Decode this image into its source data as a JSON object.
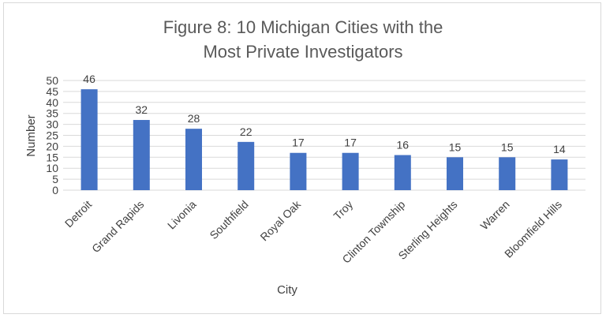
{
  "chart_data": {
    "type": "bar",
    "title_lines": [
      "Figure 8: 10 Michigan Cities with the",
      "Most Private Investigators"
    ],
    "xlabel": "City",
    "ylabel": "Number",
    "categories": [
      "Detroit",
      "Grand Rapids",
      "Livonia",
      "Southfield",
      "Royal Oak",
      "Troy",
      "Clinton Township",
      "Sterling Heights",
      "Warren",
      "Bloomfield Hills"
    ],
    "values": [
      46,
      32,
      28,
      22,
      17,
      17,
      16,
      15,
      15,
      14
    ],
    "ylim": [
      0,
      50
    ],
    "yticks": [
      0,
      5,
      10,
      15,
      20,
      25,
      30,
      35,
      40,
      45,
      50
    ],
    "grid": true,
    "legend": "none",
    "colors": {
      "bar": "#4472c4",
      "grid": "#d9d9d9",
      "text": "#404040",
      "title": "#595959"
    }
  }
}
